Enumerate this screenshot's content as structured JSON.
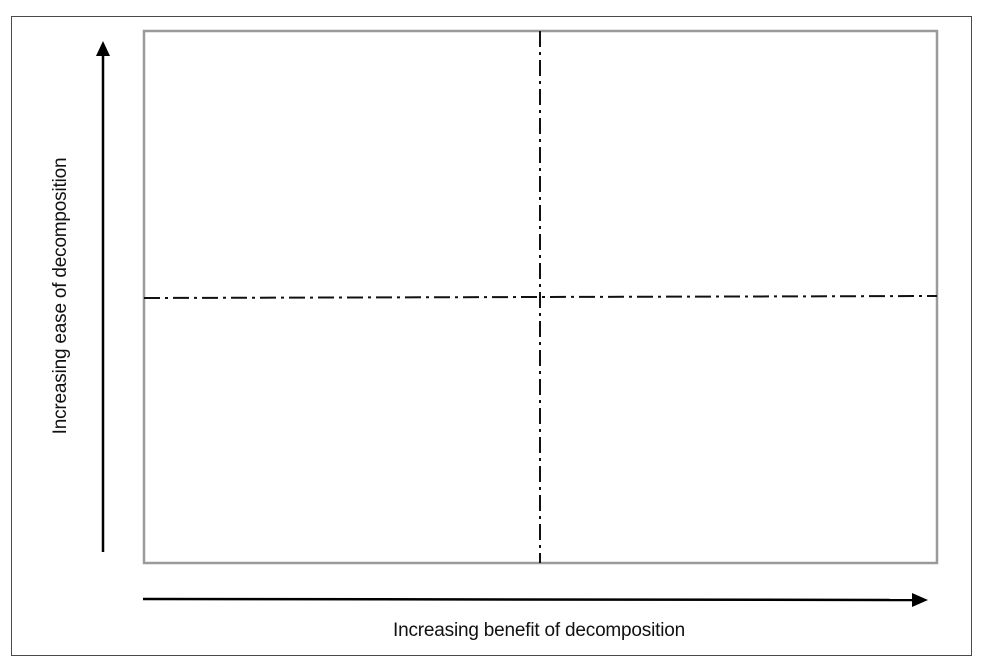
{
  "diagram": {
    "type": "quadrant-matrix",
    "y_axis_label": "Increasing ease of decomposition",
    "x_axis_label": "Increasing benefit of decomposition",
    "quadrant_count": 4,
    "divider_style": "dash-dot",
    "colors": {
      "grid_border": "#9a9a9a",
      "divider": "#111111",
      "arrow": "#000000",
      "frame": "#4a4a4a"
    }
  }
}
